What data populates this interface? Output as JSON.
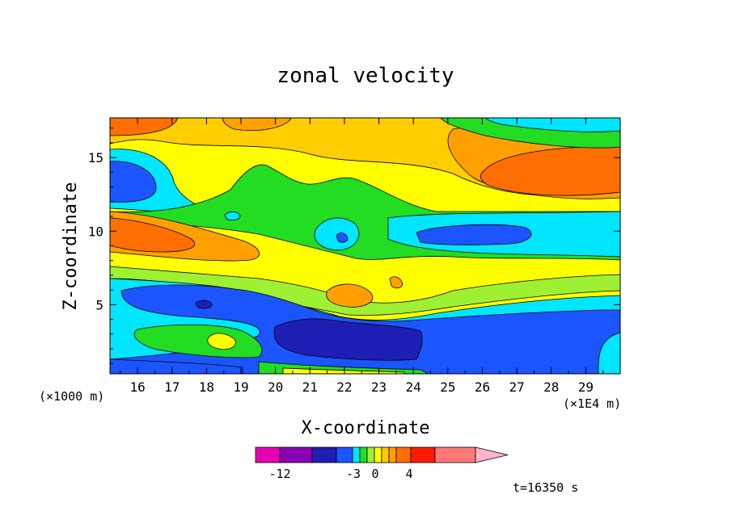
{
  "chart_data": {
    "type": "heatmap",
    "title": "zonal velocity",
    "xlabel": "X-coordinate",
    "ylabel": "Z-coordinate",
    "x_unit_label": "(×1E4 m)",
    "y_unit_label": "(×1000 m)",
    "xlim": [
      15.2,
      30.0
    ],
    "ylim": [
      0.3,
      17.7
    ],
    "x_ticks": [
      "16",
      "17",
      "18",
      "19",
      "20",
      "21",
      "22",
      "23",
      "24",
      "25",
      "26",
      "27",
      "28",
      "29"
    ],
    "y_ticks": [
      "5",
      "10",
      "15"
    ],
    "time_label": "t=16350 s",
    "colorbar": {
      "tick_labels": [
        "-12",
        "-3",
        "0",
        "4"
      ],
      "tick_values": [
        -12,
        -3,
        0,
        4
      ],
      "colors": [
        "#e600b4",
        "#8c00b4",
        "#1e1eb4",
        "#1a55ff",
        "#00e6ff",
        "#22dd22",
        "#9ef032",
        "#ffff00",
        "#ffcd00",
        "#ffa000",
        "#ff6e00",
        "#ff1a00",
        "#ff7878",
        "#ffb4c8"
      ]
    },
    "regions": [
      {
        "label": "surface jet (orange)",
        "value": 5,
        "x": [
          15.2,
          16.8
        ],
        "z": [
          16.5,
          17.7
        ]
      },
      {
        "label": "upper orange core",
        "value": 4,
        "x": [
          26.0,
          30.0
        ],
        "z": [
          12.2,
          15.6
        ]
      },
      {
        "label": "upper-left blue core",
        "value": -5,
        "x": [
          15.2,
          16.4
        ],
        "z": [
          11.8,
          15.2
        ]
      },
      {
        "label": "mid green band",
        "value": -1,
        "x": [
          18.5,
          24.0
        ],
        "z": [
          9.0,
          13.5
        ]
      },
      {
        "label": "cyan mid-right band",
        "value": -2,
        "x": [
          23.0,
          30.0
        ],
        "z": [
          8.5,
          11.0
        ]
      },
      {
        "label": "blue core mid-right",
        "value": -4,
        "x": [
          24.8,
          27.4
        ],
        "z": [
          9.2,
          10.4
        ]
      },
      {
        "label": "left orange tongue",
        "value": 4,
        "x": [
          15.2,
          18.5
        ],
        "z": [
          8.5,
          10.5
        ]
      },
      {
        "label": "lower blue layer",
        "value": -5,
        "x": [
          15.5,
          24.5
        ],
        "z": [
          2.5,
          6.0
        ]
      },
      {
        "label": "lower navy core",
        "value": -8,
        "x": [
          20.0,
          24.0
        ],
        "z": [
          1.0,
          4.0
        ]
      },
      {
        "label": "lower green tongue",
        "value": -1,
        "x": [
          16.0,
          19.5
        ],
        "z": [
          1.0,
          3.5
        ]
      },
      {
        "label": "bottom blue strip",
        "value": -5,
        "x": [
          15.2,
          19.5
        ],
        "z": [
          0.3,
          1.2
        ]
      }
    ]
  }
}
